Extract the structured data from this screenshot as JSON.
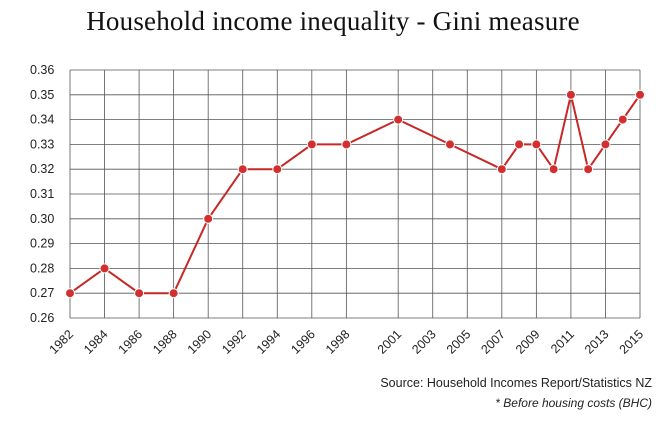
{
  "title": "Household income inequality - Gini measure",
  "source": "Source: Household Incomes Report/Statistics NZ",
  "note": "* Before housing costs (BHC)",
  "colors": {
    "line": "#c62828",
    "marker": "#d32f2f",
    "grid": "#555555",
    "text": "#222222"
  },
  "chart_data": {
    "type": "line",
    "title": "Household income inequality - Gini measure",
    "xlabel": "",
    "ylabel": "",
    "grid": true,
    "legend": "none",
    "ylim": [
      0.26,
      0.36
    ],
    "xlim": [
      1982,
      2015
    ],
    "y_ticks": [
      0.26,
      0.27,
      0.28,
      0.29,
      0.3,
      0.31,
      0.32,
      0.33,
      0.34,
      0.35,
      0.36
    ],
    "y_tick_labels": [
      "0.26",
      "0.27",
      "0.28",
      "0.29",
      "0.30",
      "0.31",
      "0.32",
      "0.33",
      "0.34",
      "0.35",
      "0.36"
    ],
    "x_ticks": [
      1982,
      1984,
      1986,
      1988,
      1990,
      1992,
      1994,
      1996,
      1998,
      2001,
      2003,
      2005,
      2007,
      2009,
      2011,
      2013,
      2015
    ],
    "x_tick_labels": [
      "1982",
      "1984",
      "1986",
      "1988",
      "1990",
      "1992",
      "1994",
      "1996",
      "1998",
      "2001",
      "2003",
      "2005",
      "2007",
      "2009",
      "2011",
      "2013",
      "2015"
    ],
    "series": [
      {
        "x": [
          1982,
          1984,
          1986,
          1988,
          1990,
          1992,
          1994,
          1996,
          1998,
          2001,
          2004,
          2007,
          2008,
          2009,
          2010,
          2011,
          2012,
          2013,
          2014,
          2015
        ],
        "values": [
          0.27,
          0.28,
          0.27,
          0.27,
          0.3,
          0.32,
          0.32,
          0.33,
          0.33,
          0.34,
          0.33,
          0.32,
          0.33,
          0.33,
          0.32,
          0.35,
          0.32,
          0.33,
          0.34,
          0.35
        ]
      }
    ]
  }
}
